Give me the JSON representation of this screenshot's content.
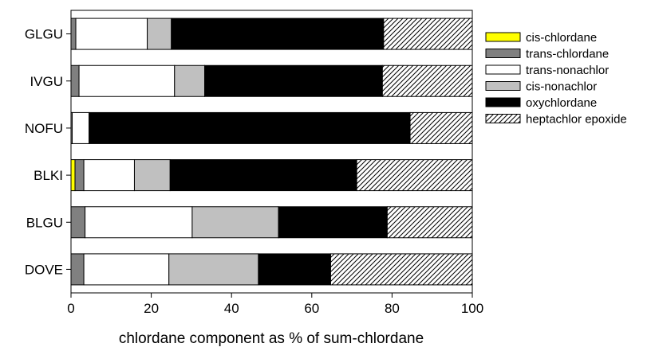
{
  "chart_data": {
    "type": "bar",
    "orientation": "horizontal",
    "stacked": true,
    "title": "",
    "xlabel": "chlordane component as % of sum-chlordane",
    "ylabel": "",
    "xlim": [
      0,
      100
    ],
    "xticks": [
      0,
      20,
      40,
      60,
      80,
      100
    ],
    "grid": false,
    "legend_position": "right",
    "categories": [
      "GLGU",
      "IVGU",
      "NOFU",
      "BLKI",
      "BLGU",
      "DOVE"
    ],
    "series": [
      {
        "name": "cis-chlordane",
        "color": "#ffff00",
        "pattern": "solid",
        "values": [
          0.0,
          0.0,
          0.0,
          1.0,
          0.0,
          0.0
        ]
      },
      {
        "name": "trans-chlordane",
        "color": "#808080",
        "pattern": "solid",
        "values": [
          1.2,
          2.0,
          0.3,
          2.2,
          3.5,
          3.2
        ]
      },
      {
        "name": "trans-nonachlor",
        "color": "#ffffff",
        "pattern": "solid",
        "values": [
          17.8,
          23.8,
          4.2,
          12.6,
          26.7,
          21.2
        ]
      },
      {
        "name": "cis-nonachlor",
        "color": "#c0c0c0",
        "pattern": "solid",
        "values": [
          6.0,
          7.5,
          0.0,
          8.9,
          21.5,
          22.3
        ]
      },
      {
        "name": "oxychlordane",
        "color": "#000000",
        "pattern": "solid",
        "values": [
          52.9,
          44.3,
          80.0,
          46.5,
          27.1,
          18.0
        ]
      },
      {
        "name": "heptachlor epoxide",
        "color": "#ffffff",
        "pattern": "hatch",
        "values": [
          22.1,
          22.4,
          15.5,
          28.8,
          21.2,
          35.3
        ]
      }
    ]
  }
}
